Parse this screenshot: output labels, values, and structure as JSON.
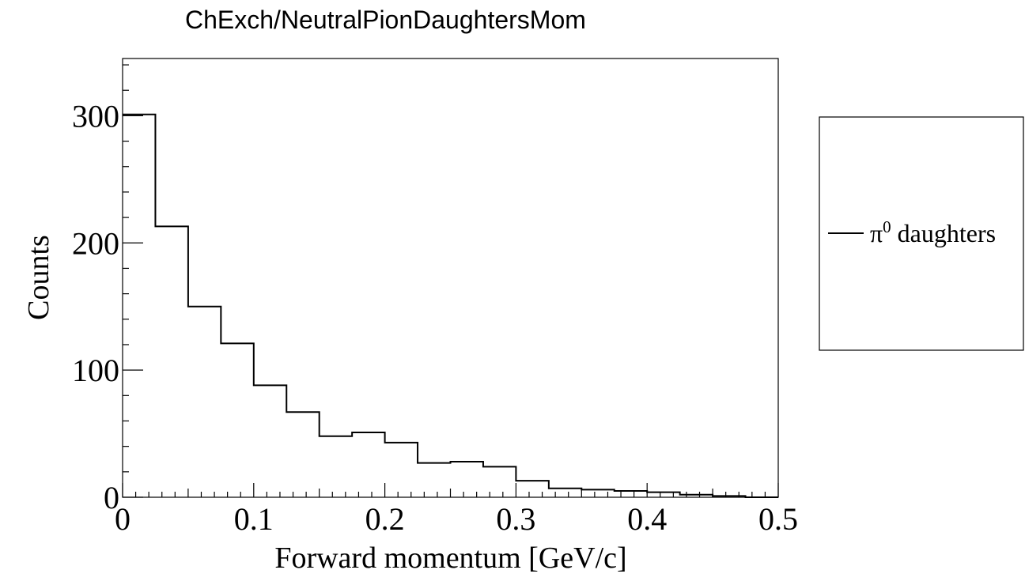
{
  "chart_data": {
    "type": "bar",
    "title": "ChExch/NeutralPionDaughtersMom",
    "xlabel": "Forward momentum [GeV/c]",
    "ylabel": "Counts",
    "xlim": [
      0,
      0.5
    ],
    "ylim": [
      0,
      345
    ],
    "bin_edges": [
      0,
      0.025,
      0.05,
      0.075,
      0.1,
      0.125,
      0.15,
      0.175,
      0.2,
      0.225,
      0.25,
      0.275,
      0.3,
      0.325,
      0.35,
      0.375,
      0.4,
      0.425,
      0.45,
      0.475,
      0.5
    ],
    "series": [
      {
        "name": "π⁰ daughters",
        "color": "#000000",
        "values": [
          301,
          213,
          150,
          121,
          88,
          67,
          48,
          51,
          43,
          27,
          28,
          24,
          13,
          7,
          6,
          5,
          4,
          2,
          1,
          0
        ]
      }
    ],
    "x_ticks": [
      {
        "value": 0,
        "label": "0"
      },
      {
        "value": 0.1,
        "label": "0.1"
      },
      {
        "value": 0.2,
        "label": "0.2"
      },
      {
        "value": 0.3,
        "label": "0.3"
      },
      {
        "value": 0.4,
        "label": "0.4"
      },
      {
        "value": 0.5,
        "label": "0.5"
      }
    ],
    "y_ticks": [
      {
        "value": 0,
        "label": "0"
      },
      {
        "value": 100,
        "label": "100"
      },
      {
        "value": 200,
        "label": "200"
      },
      {
        "value": 300,
        "label": "300"
      }
    ],
    "legend": {
      "placement": "right, outside plot",
      "entries": [
        {
          "label_base": "π",
          "label_sup": "0",
          "label_rest": " daughters"
        }
      ]
    },
    "grid": false
  }
}
